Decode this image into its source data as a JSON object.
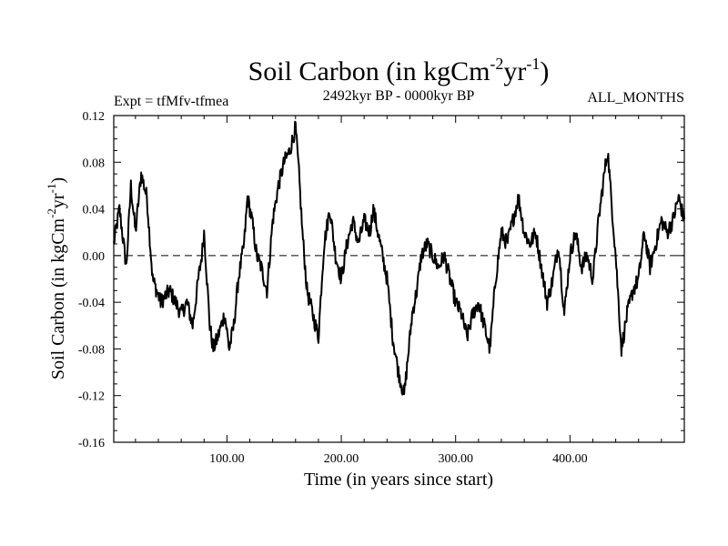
{
  "chart_data": {
    "type": "line",
    "title": "Soil Carbon (in kgCm",
    "title_sup1": "-2",
    "title_mid": "yr",
    "title_sup2": "-1",
    "title_end": ")",
    "subtitle_left": "Expt = tfMfv-tfmea",
    "subtitle_center": "2492kyr BP - 0000kyr BP",
    "subtitle_right": "ALL_MONTHS",
    "xlabel": "Time (in years since start)",
    "ylabel": "Soil Carbon (in kgCm",
    "ylabel_sup1": "-2",
    "ylabel_mid": "yr",
    "ylabel_sup2": "-1",
    "ylabel_end": ")",
    "xlim": [
      1,
      500
    ],
    "ylim": [
      -0.16,
      0.12
    ],
    "xticks": [
      100,
      200,
      300,
      400
    ],
    "xtick_labels": [
      "100.00",
      "200.00",
      "300.00",
      "400.00"
    ],
    "yticks": [
      0.12,
      0.08,
      0.04,
      0.0,
      -0.04,
      -0.08,
      -0.12,
      -0.16
    ],
    "ytick_labels": [
      "0.12",
      "0.08",
      "0.04",
      "0.00",
      "-0.04",
      "-0.08",
      "-0.12",
      "-0.16"
    ],
    "reference_line": 0.0,
    "series": [
      {
        "name": "Soil Carbon",
        "x": [
          1,
          6,
          12,
          16,
          20,
          25,
          30,
          35,
          42,
          50,
          55,
          60,
          65,
          70,
          75,
          78,
          80,
          85,
          88,
          92,
          98,
          102,
          106,
          110,
          115,
          118,
          122,
          126,
          130,
          135,
          140,
          145,
          150,
          155,
          160,
          163,
          166,
          170,
          175,
          180,
          183,
          185,
          190,
          195,
          200,
          205,
          210,
          215,
          220,
          225,
          228,
          232,
          236,
          240,
          245,
          250,
          255,
          258,
          262,
          266,
          270,
          275,
          280,
          285,
          290,
          295,
          300,
          305,
          310,
          315,
          320,
          325,
          330,
          335,
          340,
          345,
          350,
          355,
          360,
          365,
          370,
          375,
          380,
          385,
          390,
          395,
          400,
          405,
          410,
          415,
          420,
          425,
          430,
          433,
          436,
          440,
          445,
          450,
          455,
          460,
          465,
          470,
          475,
          480,
          485,
          490,
          495,
          500
        ],
        "y": [
          0.01,
          0.04,
          -0.01,
          0.06,
          0.02,
          0.07,
          0.05,
          -0.02,
          -0.04,
          -0.03,
          -0.04,
          -0.05,
          -0.04,
          -0.06,
          -0.02,
          0.0,
          0.02,
          -0.06,
          -0.08,
          -0.07,
          -0.05,
          -0.08,
          -0.06,
          -0.02,
          0.01,
          0.05,
          0.03,
          0.0,
          -0.01,
          -0.03,
          0.03,
          0.06,
          0.08,
          0.09,
          0.11,
          0.07,
          0.02,
          -0.03,
          -0.05,
          -0.07,
          -0.02,
          0.01,
          0.04,
          0.0,
          -0.02,
          0.01,
          0.03,
          0.01,
          0.03,
          0.02,
          0.04,
          0.02,
          0.0,
          -0.02,
          -0.07,
          -0.1,
          -0.12,
          -0.09,
          -0.05,
          -0.03,
          0.0,
          0.01,
          0.0,
          -0.01,
          0.0,
          -0.02,
          -0.04,
          -0.05,
          -0.07,
          -0.05,
          -0.04,
          -0.06,
          -0.08,
          -0.02,
          0.02,
          0.01,
          0.03,
          0.05,
          0.02,
          0.01,
          0.02,
          -0.01,
          -0.04,
          -0.02,
          0.01,
          -0.05,
          0.0,
          0.02,
          -0.01,
          0.0,
          -0.02,
          0.03,
          0.07,
          0.09,
          0.05,
          0.0,
          -0.08,
          -0.05,
          -0.03,
          -0.02,
          0.02,
          -0.01,
          0.01,
          0.03,
          0.02,
          0.03,
          0.05,
          0.03
        ]
      }
    ]
  }
}
